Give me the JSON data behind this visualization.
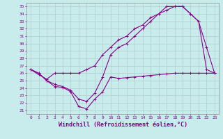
{
  "xlabel": "Windchill (Refroidissement éolien,°C)",
  "ylabel": "",
  "bg_color": "#c8ecec",
  "grid_color": "#b0cccc",
  "line_color": "#880088",
  "marker": "+",
  "xlim": [
    -0.5,
    23.5
  ],
  "ylim": [
    20.5,
    35.5
  ],
  "xticks": [
    0,
    1,
    2,
    3,
    4,
    5,
    6,
    7,
    8,
    9,
    10,
    11,
    12,
    13,
    14,
    15,
    16,
    17,
    18,
    19,
    20,
    21,
    22,
    23
  ],
  "yticks": [
    21,
    22,
    23,
    24,
    25,
    26,
    27,
    28,
    29,
    30,
    31,
    32,
    33,
    34,
    35
  ],
  "curve1_x": [
    0,
    1,
    2,
    3,
    4,
    5,
    6,
    7,
    8,
    9,
    10,
    11,
    12,
    13,
    14,
    15,
    16,
    17,
    18,
    19,
    20,
    21,
    22,
    23
  ],
  "curve1_y": [
    26.5,
    26.0,
    25.0,
    24.2,
    24.1,
    23.5,
    21.5,
    21.2,
    22.5,
    23.5,
    25.5,
    25.3,
    25.4,
    25.5,
    25.6,
    25.7,
    25.8,
    25.9,
    26.0,
    26.0,
    26.0,
    26.0,
    26.0,
    26.0
  ],
  "curve2_x": [
    0,
    1,
    2,
    3,
    4,
    5,
    6,
    7,
    8,
    9,
    10,
    11,
    12,
    13,
    14,
    15,
    16,
    17,
    18,
    19,
    20,
    21,
    22,
    23
  ],
  "curve2_y": [
    26.5,
    25.8,
    25.2,
    26.0,
    26.0,
    26.0,
    26.0,
    26.5,
    27.0,
    28.5,
    29.5,
    30.5,
    31.0,
    32.0,
    32.5,
    33.5,
    34.0,
    35.0,
    35.0,
    35.0,
    34.0,
    33.0,
    26.5,
    26.0
  ],
  "curve3_x": [
    0,
    1,
    2,
    3,
    4,
    5,
    6,
    7,
    8,
    9,
    10,
    11,
    12,
    13,
    14,
    15,
    16,
    17,
    18,
    19,
    20,
    21,
    22,
    23
  ],
  "curve3_y": [
    26.5,
    26.0,
    25.0,
    24.5,
    24.2,
    23.7,
    22.5,
    22.2,
    23.3,
    25.5,
    28.5,
    29.5,
    30.0,
    31.0,
    32.0,
    33.0,
    34.0,
    34.5,
    35.0,
    35.0,
    34.0,
    33.0,
    29.5,
    26.0
  ],
  "tick_fontsize": 4.5,
  "xlabel_fontsize": 6.0,
  "linewidth": 0.8
}
